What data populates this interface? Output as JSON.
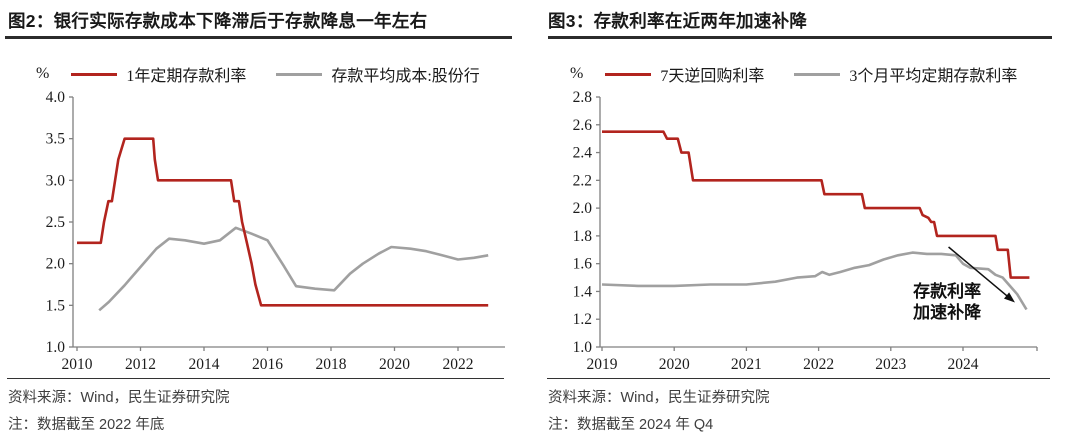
{
  "colors": {
    "series_red": "#b2241e",
    "series_gray": "#a0a0a0",
    "axis": "#808080",
    "title_text": "#191919",
    "footer_text": "#3e3e3e",
    "annotation": "#101010"
  },
  "charts": [
    {
      "id": "fig2",
      "title": "图2：银行实际存款成本下降滞后于存款降息一年左右",
      "unit_label": "%",
      "legend": [
        {
          "key": "deposit-rate-1y",
          "label": "1年定期存款利率",
          "color": "#b2241e"
        },
        {
          "key": "avg-deposit-cost-jsb",
          "label": "存款平均成本:股份行",
          "color": "#a0a0a0"
        }
      ],
      "source": "资料来源：Wind，民生证券研究院",
      "note": "注：数据截至 2022 年底",
      "chart_data": {
        "type": "line",
        "title": "银行实际存款成本下降滞后于存款降息一年左右",
        "ylabel": "%",
        "ylim": [
          1.0,
          4.0
        ],
        "xlim": [
          2010,
          2023.5
        ],
        "grid": false,
        "legend_position": "top",
        "y_ticks": [
          "4.0",
          "3.5",
          "3.0",
          "2.5",
          "2.0",
          "1.5",
          "1.0"
        ],
        "x_ticks": [
          "2010",
          "2012",
          "2014",
          "2016",
          "2018",
          "2020",
          "2022"
        ],
        "series": [
          {
            "name": "存款平均成本:股份行",
            "key": "avg-deposit-cost-jsb",
            "color": "#a0a0a0",
            "points": [
              [
                2010.7,
                1.44
              ],
              [
                2011.0,
                1.54
              ],
              [
                2011.5,
                1.74
              ],
              [
                2012.0,
                1.96
              ],
              [
                2012.5,
                2.18
              ],
              [
                2012.9,
                2.3
              ],
              [
                2013.4,
                2.28
              ],
              [
                2014.0,
                2.24
              ],
              [
                2014.5,
                2.28
              ],
              [
                2015.0,
                2.43
              ],
              [
                2015.5,
                2.36
              ],
              [
                2016.0,
                2.28
              ],
              [
                2016.5,
                1.98
              ],
              [
                2016.9,
                1.73
              ],
              [
                2017.5,
                1.7
              ],
              [
                2018.1,
                1.68
              ],
              [
                2018.6,
                1.88
              ],
              [
                2019.0,
                2.0
              ],
              [
                2019.5,
                2.12
              ],
              [
                2019.9,
                2.2
              ],
              [
                2020.5,
                2.18
              ],
              [
                2021.0,
                2.15
              ],
              [
                2021.5,
                2.1
              ],
              [
                2022.0,
                2.05
              ],
              [
                2022.5,
                2.07
              ],
              [
                2022.95,
                2.1
              ]
            ]
          },
          {
            "name": "1年定期存款利率",
            "key": "deposit-rate-1y",
            "color": "#b2241e",
            "points": [
              [
                2010.0,
                2.25
              ],
              [
                2010.75,
                2.25
              ],
              [
                2010.85,
                2.5
              ],
              [
                2010.99,
                2.75
              ],
              [
                2011.1,
                2.75
              ],
              [
                2011.2,
                3.0
              ],
              [
                2011.3,
                3.25
              ],
              [
                2011.5,
                3.5
              ],
              [
                2012.4,
                3.5
              ],
              [
                2012.45,
                3.25
              ],
              [
                2012.55,
                3.0
              ],
              [
                2014.85,
                3.0
              ],
              [
                2014.95,
                2.75
              ],
              [
                2015.1,
                2.75
              ],
              [
                2015.2,
                2.5
              ],
              [
                2015.35,
                2.25
              ],
              [
                2015.5,
                2.0
              ],
              [
                2015.62,
                1.75
              ],
              [
                2015.8,
                1.5
              ],
              [
                2022.95,
                1.5
              ]
            ]
          }
        ]
      }
    },
    {
      "id": "fig3",
      "title": "图3：存款利率在近两年加速补降",
      "unit_label": "%",
      "legend": [
        {
          "key": "reverse-repo-7d",
          "label": "7天逆回购利率",
          "color": "#b2241e"
        },
        {
          "key": "avg-time-deposit-3m",
          "label": "3个月平均定期存款利率",
          "color": "#a0a0a0"
        }
      ],
      "source": "资料来源：Wind，民生证券研究院",
      "note": "注：数据截至 2024 年 Q4",
      "chart_data": {
        "type": "line",
        "title": "存款利率在近两年加速补降",
        "ylabel": "%",
        "ylim": [
          1.0,
          2.8
        ],
        "xlim": [
          2019,
          2025
        ],
        "grid": false,
        "legend_position": "top",
        "y_ticks": [
          "2.8",
          "2.6",
          "2.4",
          "2.2",
          "2.0",
          "1.8",
          "1.6",
          "1.4",
          "1.2",
          "1.0"
        ],
        "x_ticks": [
          "2019",
          "2020",
          "2021",
          "2022",
          "2023",
          "2024"
        ],
        "series": [
          {
            "name": "3个月平均定期存款利率",
            "key": "avg-time-deposit-3m",
            "color": "#a0a0a0",
            "points": [
              [
                2019.0,
                1.45
              ],
              [
                2019.5,
                1.44
              ],
              [
                2020.0,
                1.44
              ],
              [
                2020.5,
                1.45
              ],
              [
                2021.0,
                1.45
              ],
              [
                2021.4,
                1.47
              ],
              [
                2021.7,
                1.5
              ],
              [
                2021.95,
                1.51
              ],
              [
                2022.05,
                1.54
              ],
              [
                2022.15,
                1.52
              ],
              [
                2022.3,
                1.54
              ],
              [
                2022.5,
                1.57
              ],
              [
                2022.7,
                1.59
              ],
              [
                2022.9,
                1.63
              ],
              [
                2023.1,
                1.66
              ],
              [
                2023.3,
                1.68
              ],
              [
                2023.5,
                1.67
              ],
              [
                2023.7,
                1.67
              ],
              [
                2023.9,
                1.66
              ],
              [
                2024.0,
                1.6
              ],
              [
                2024.1,
                1.57
              ],
              [
                2024.35,
                1.56
              ],
              [
                2024.45,
                1.52
              ],
              [
                2024.55,
                1.5
              ],
              [
                2024.65,
                1.44
              ],
              [
                2024.75,
                1.38
              ],
              [
                2024.88,
                1.27
              ]
            ]
          },
          {
            "name": "7天逆回购利率",
            "key": "reverse-repo-7d",
            "color": "#b2241e",
            "points": [
              [
                2019.0,
                2.55
              ],
              [
                2019.85,
                2.55
              ],
              [
                2019.9,
                2.5
              ],
              [
                2020.05,
                2.5
              ],
              [
                2020.1,
                2.4
              ],
              [
                2020.2,
                2.4
              ],
              [
                2020.26,
                2.2
              ],
              [
                2022.04,
                2.2
              ],
              [
                2022.08,
                2.1
              ],
              [
                2022.6,
                2.1
              ],
              [
                2022.64,
                2.0
              ],
              [
                2023.4,
                2.0
              ],
              [
                2023.44,
                1.95
              ],
              [
                2023.52,
                1.93
              ],
              [
                2023.56,
                1.9
              ],
              [
                2023.6,
                1.9
              ],
              [
                2023.64,
                1.8
              ],
              [
                2024.45,
                1.8
              ],
              [
                2024.48,
                1.7
              ],
              [
                2024.62,
                1.7
              ],
              [
                2024.66,
                1.5
              ],
              [
                2024.92,
                1.5
              ]
            ]
          }
        ],
        "annotation": {
          "text_lines": [
            "存款利率",
            "加速补降"
          ],
          "text_x": 2023.78,
          "text_y": 1.36,
          "arrow": {
            "x1": 2023.8,
            "y1": 1.72,
            "x2": 2024.72,
            "y2": 1.32
          }
        }
      }
    }
  ]
}
